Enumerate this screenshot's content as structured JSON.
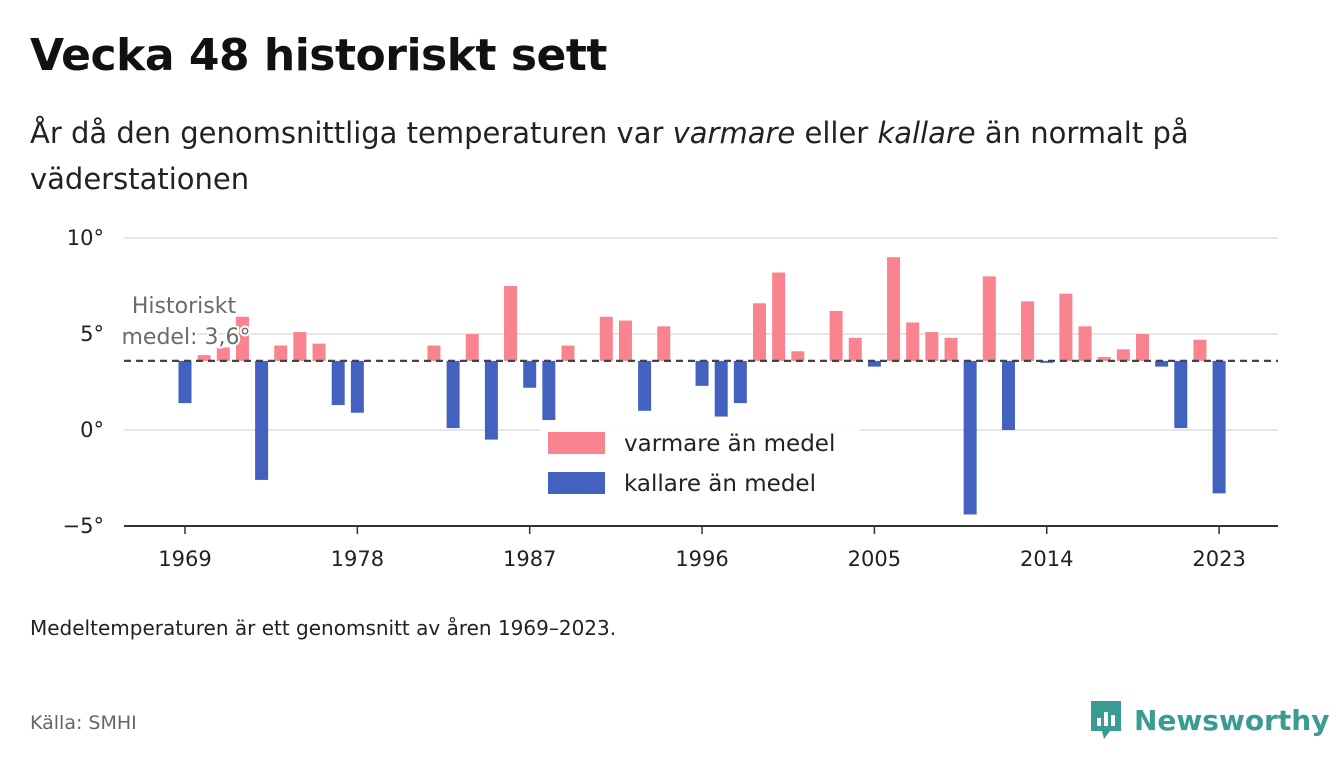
{
  "header": {
    "title": "Vecka 48 historiskt sett",
    "subtitle_pre": "År då den genomsnittliga temperaturen var ",
    "subtitle_warm": "varmare",
    "subtitle_mid": " eller ",
    "subtitle_cold": "kallare",
    "subtitle_post": " än normalt på väderstationen"
  },
  "footer": {
    "note": "Medeltemperaturen är ett genomsnitt av åren 1969–2023.",
    "source": "Källa: SMHI",
    "brand": "Newsworthy"
  },
  "colors": {
    "warm": "#f9838e",
    "cold": "#4361bf",
    "brand": "#3a9b92",
    "gridline": "#dddddd",
    "average_line": "#444444"
  },
  "chart_data": {
    "type": "bar",
    "baseline": 3.6,
    "average_label_line1": "Historiskt",
    "average_label_line2": "medel: 3,6°",
    "ylim": [
      -5,
      10
    ],
    "y_ticks": [
      {
        "value": -5,
        "label": "−5°"
      },
      {
        "value": 0,
        "label": "0°"
      },
      {
        "value": 5,
        "label": "5°"
      },
      {
        "value": 10,
        "label": "10°"
      }
    ],
    "x_ticks": [
      1969,
      1978,
      1987,
      1996,
      2005,
      2014,
      2023
    ],
    "legend": [
      {
        "label": "varmare än medel",
        "color": "#f9838e"
      },
      {
        "label": "kallare än medel",
        "color": "#4361bf"
      }
    ],
    "legend_position": "center",
    "x": [
      1969,
      1970,
      1971,
      1972,
      1973,
      1974,
      1975,
      1976,
      1977,
      1978,
      1979,
      1980,
      1981,
      1982,
      1983,
      1984,
      1985,
      1986,
      1987,
      1988,
      1989,
      1990,
      1991,
      1992,
      1993,
      1994,
      1995,
      1996,
      1997,
      1998,
      1999,
      2000,
      2001,
      2002,
      2003,
      2004,
      2005,
      2006,
      2007,
      2008,
      2009,
      2010,
      2011,
      2012,
      2013,
      2014,
      2015,
      2016,
      2017,
      2018,
      2019,
      2020,
      2021,
      2022,
      2023
    ],
    "values": [
      1.4,
      3.9,
      4.3,
      5.9,
      -2.6,
      4.4,
      5.1,
      4.5,
      1.3,
      0.9,
      null,
      null,
      null,
      4.4,
      0.1,
      5.0,
      -0.5,
      7.5,
      2.2,
      0.5,
      4.4,
      null,
      5.9,
      5.7,
      1.0,
      5.4,
      null,
      2.3,
      0.7,
      1.4,
      6.6,
      8.2,
      4.1,
      null,
      6.2,
      4.8,
      3.3,
      9.0,
      5.6,
      5.1,
      4.8,
      -4.4,
      8.0,
      0.0,
      6.7,
      3.5,
      7.1,
      5.4,
      3.8,
      4.2,
      5.0,
      3.3,
      0.1,
      4.7,
      -3.3
    ]
  }
}
